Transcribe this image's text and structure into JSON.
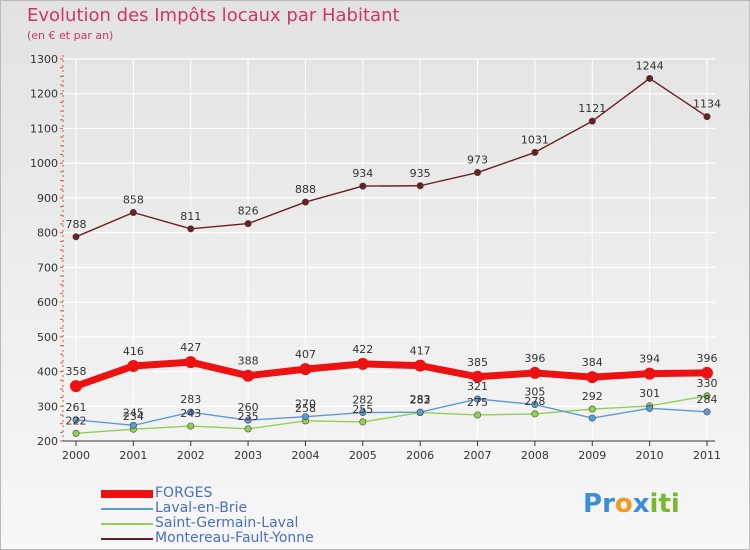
{
  "header": {
    "title": "Evolution des Impôts locaux par Habitant",
    "subtitle": "(en € et par an)"
  },
  "brand": {
    "text": "Proxiti",
    "letters": [
      {
        "ch": "P",
        "color": "#3b8fd6"
      },
      {
        "ch": "r",
        "color": "#3b8fd6"
      },
      {
        "ch": "o",
        "color": "#f29a1c"
      },
      {
        "ch": "x",
        "color": "#3b8fd6"
      },
      {
        "ch": "i",
        "color": "#7ab82e"
      },
      {
        "ch": "t",
        "color": "#7ab82e"
      },
      {
        "ch": "i",
        "color": "#7ab82e"
      }
    ]
  },
  "colors": {
    "axis": "#d9534f",
    "grid": "#ffffff",
    "tick_text": "#333333"
  },
  "chart_data": {
    "type": "line",
    "title": "Evolution des Impôts locaux par Habitant",
    "subtitle": "(en € et par an)",
    "x": [
      "2000",
      "2001",
      "2002",
      "2003",
      "2004",
      "2005",
      "2006",
      "2007",
      "2008",
      "2009",
      "2010",
      "2011"
    ],
    "ylim": [
      200,
      1300
    ],
    "yticks": [
      200,
      300,
      400,
      500,
      600,
      700,
      800,
      900,
      1000,
      1100,
      1200,
      1300
    ],
    "grid": true,
    "legend_position": "bottom-left",
    "series": [
      {
        "name": "FORGES",
        "values": [
          358,
          416,
          427,
          388,
          407,
          422,
          417,
          385,
          396,
          384,
          394,
          396
        ],
        "color": "#ee1111",
        "labels": [
          "358",
          "416",
          "427",
          "388",
          "407",
          "422",
          "417",
          "385",
          "396",
          "384",
          "394",
          "396"
        ],
        "label_pos": "above"
      },
      {
        "name": "Laval-en-Brie",
        "values": [
          261,
          245,
          283,
          260,
          270,
          282,
          283,
          321,
          305,
          266,
          294,
          284
        ],
        "color": "#5b9bd5",
        "labels": [
          "261",
          "245",
          "283",
          "260",
          "270",
          "282",
          "283",
          "321",
          "305",
          "",
          "",
          "284"
        ],
        "label_pos": "above"
      },
      {
        "name": "Saint-Germain-Laval",
        "values": [
          222,
          234,
          243,
          235,
          258,
          255,
          282,
          275,
          278,
          292,
          301,
          330
        ],
        "color": "#92d050",
        "labels": [
          "222",
          "234",
          "243",
          "235",
          "258",
          "255",
          "282",
          "275",
          "278",
          "292",
          "301",
          "330"
        ],
        "label_pos": "above"
      },
      {
        "name": "Montereau-Fault-Yonne",
        "values": [
          788,
          858,
          811,
          826,
          888,
          934,
          935,
          973,
          1031,
          1121,
          1244,
          1134
        ],
        "color": "#6b1f24",
        "labels": [
          "788",
          "858",
          "811",
          "826",
          "888",
          "934",
          "935",
          "973",
          "1031",
          "1121",
          "1244",
          "1134"
        ],
        "label_pos": "above"
      }
    ]
  }
}
